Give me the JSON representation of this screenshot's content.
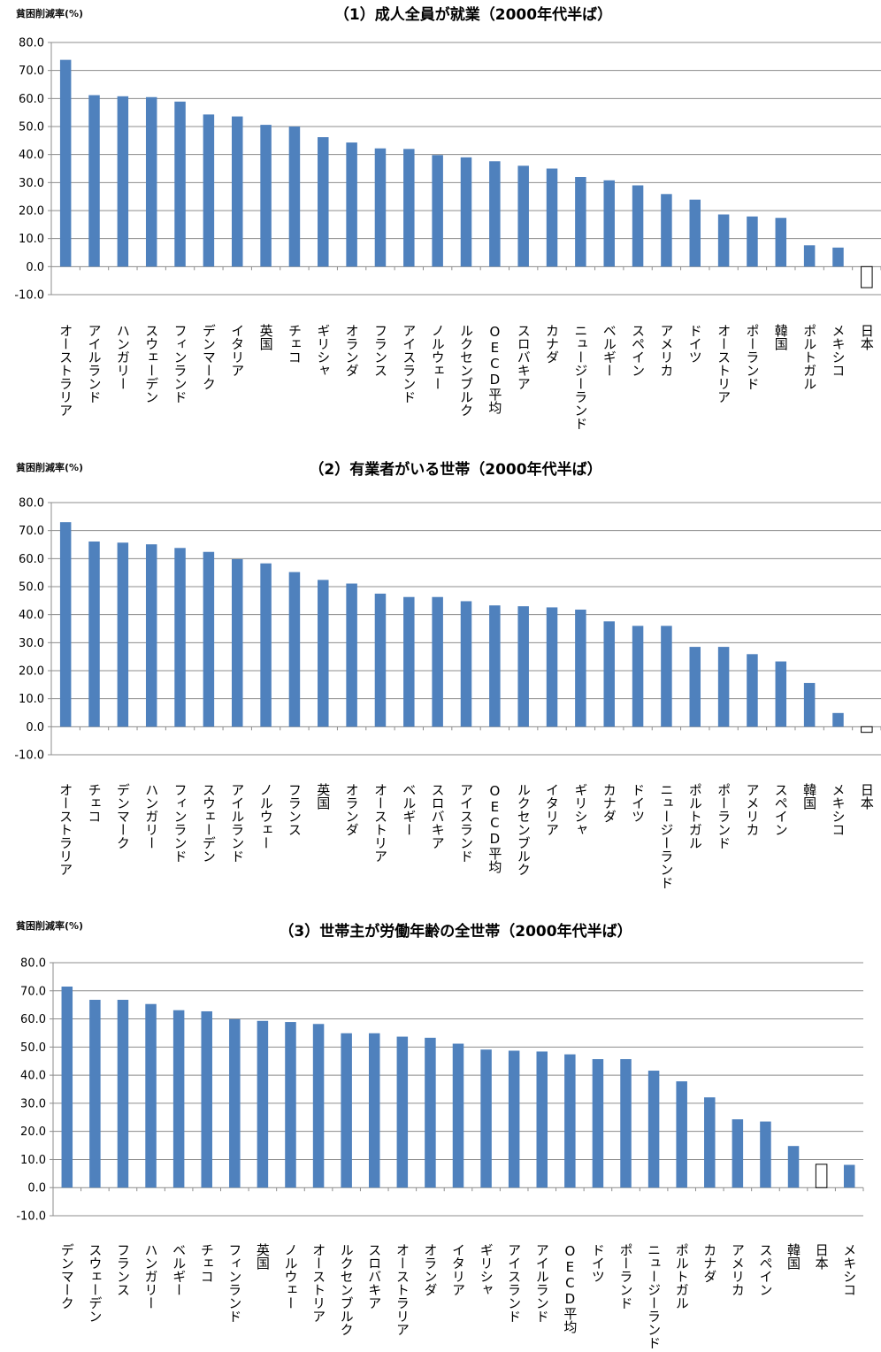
{
  "chart_data": [
    {
      "type": "bar",
      "title": "（1）成人全員が就業（2000年代半ば）",
      "ylabel": "貧困削減率(%)",
      "xlabel": "",
      "ylim": [
        -10,
        80
      ],
      "yticks": [
        "80.0",
        "70.0",
        "60.0",
        "50.0",
        "40.0",
        "30.0",
        "20.0",
        "10.0",
        "0.0",
        "-10.0"
      ],
      "grid": true,
      "color": "#4f81bd",
      "categories": [
        "オーストラリア",
        "アイルランド",
        "ハンガリー",
        "スウェーデン",
        "フィンランド",
        "デンマーク",
        "イタリア",
        "英国",
        "チェコ",
        "ギリシャ",
        "オランダ",
        "フランス",
        "アイスランド",
        "ノルウェー",
        "ルクセンブルク",
        "OECD平均",
        "スロバキア",
        "カナダ",
        "ニュージーランド",
        "ベルギー",
        "スペイン",
        "アメリカ",
        "ドイツ",
        "オーストリア",
        "ポーランド",
        "韓国",
        "ポルトガル",
        "メキシコ",
        "日本"
      ],
      "values": [
        73.8,
        61.2,
        60.8,
        60.5,
        58.9,
        54.3,
        53.6,
        50.6,
        50.0,
        46.2,
        44.3,
        42.2,
        42.0,
        39.8,
        39.0,
        37.6,
        36.0,
        35.0,
        32.0,
        30.8,
        29.0,
        25.9,
        23.9,
        18.6,
        17.9,
        17.4,
        7.6,
        6.8,
        -7.5
      ],
      "highlight": [
        "日本"
      ]
    },
    {
      "type": "bar",
      "title": "（2）有業者がいる世帯（2000年代半ば）",
      "ylabel": "貧困削減率(%)",
      "xlabel": "",
      "ylim": [
        -10,
        80
      ],
      "yticks": [
        "80.0",
        "70.0",
        "60.0",
        "50.0",
        "40.0",
        "30.0",
        "20.0",
        "10.0",
        "0.0",
        "-10.0"
      ],
      "grid": true,
      "color": "#4f81bd",
      "categories": [
        "オーストラリア",
        "チェコ",
        "デンマーク",
        "ハンガリー",
        "フィンランド",
        "スウェーデン",
        "アイルランド",
        "ノルウェー",
        "フランス",
        "英国",
        "オランダ",
        "オーストリア",
        "ベルギー",
        "スロバキア",
        "アイスランド",
        "OECD平均",
        "ルクセンブルク",
        "イタリア",
        "ギリシャ",
        "カナダ",
        "ドイツ",
        "ニュージーランド",
        "ポルトガル",
        "ポーランド",
        "アメリカ",
        "スペイン",
        "韓国",
        "メキシコ",
        "日本"
      ],
      "values": [
        73.0,
        66.1,
        65.7,
        65.1,
        63.8,
        62.4,
        59.8,
        58.3,
        55.2,
        52.4,
        51.1,
        47.5,
        46.3,
        46.3,
        44.8,
        43.3,
        43.0,
        42.6,
        41.8,
        37.6,
        36.0,
        36.0,
        28.5,
        28.5,
        25.9,
        23.3,
        15.6,
        4.9,
        -2.0
      ],
      "highlight": [
        "日本"
      ]
    },
    {
      "type": "bar",
      "title": "（3）世帯主が労働年齢の全世帯（2000年代半ば）",
      "ylabel": "貧困削減率(%)",
      "xlabel": "",
      "ylim": [
        -10,
        80
      ],
      "yticks": [
        "80.0",
        "70.0",
        "60.0",
        "50.0",
        "40.0",
        "30.0",
        "20.0",
        "10.0",
        "0.0",
        "-10.0"
      ],
      "grid": true,
      "color": "#4f81bd",
      "categories": [
        "デンマーク",
        "スウェーデン",
        "フランス",
        "ハンガリー",
        "ベルギー",
        "チェコ",
        "フィンランド",
        "英国",
        "ノルウェー",
        "オーストリア",
        "ルクセンブルク",
        "スロバキア",
        "オーストラリア",
        "オランダ",
        "イタリア",
        "ギリシャ",
        "アイスランド",
        "アイルランド",
        "OECD平均",
        "ドイツ",
        "ポーランド",
        "ニュージーランド",
        "ポルトガル",
        "カナダ",
        "アメリカ",
        "スペイン",
        "韓国",
        "日本",
        "メキシコ"
      ],
      "values": [
        71.5,
        66.8,
        66.8,
        65.3,
        63.1,
        62.7,
        59.9,
        59.3,
        58.9,
        58.2,
        54.9,
        54.9,
        53.7,
        53.3,
        51.2,
        49.1,
        48.7,
        48.4,
        47.4,
        45.7,
        45.7,
        41.6,
        37.8,
        32.1,
        24.3,
        23.5,
        14.8,
        8.3,
        8.1
      ],
      "highlight": [
        "日本"
      ]
    }
  ]
}
